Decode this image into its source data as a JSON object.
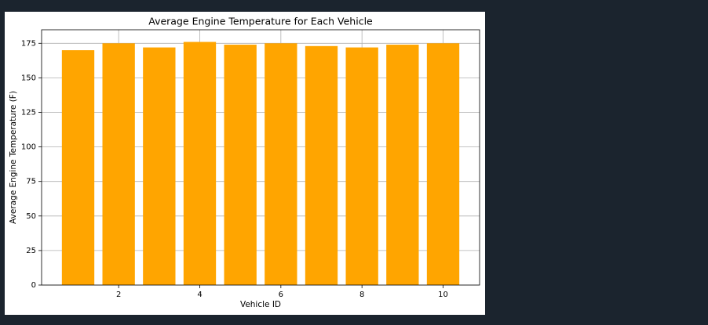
{
  "chart_data": {
    "type": "bar",
    "title": "Average Engine Temperature for Each Vehicle",
    "xlabel": "Vehicle ID",
    "ylabel": "Average Engine Temperature (F)",
    "x": [
      1,
      2,
      3,
      4,
      5,
      6,
      7,
      8,
      9,
      10
    ],
    "values": [
      170,
      175,
      172,
      176,
      174,
      175,
      173,
      172,
      174,
      175
    ],
    "color": "#ffa500",
    "xlim": [
      0.1,
      10.9
    ],
    "xticks": [
      2,
      4,
      6,
      8,
      10
    ],
    "ylim": [
      0,
      184.8
    ],
    "yticks": [
      0,
      25,
      50,
      75,
      100,
      125,
      150,
      175
    ],
    "bar_width": 0.8,
    "grid": true
  }
}
